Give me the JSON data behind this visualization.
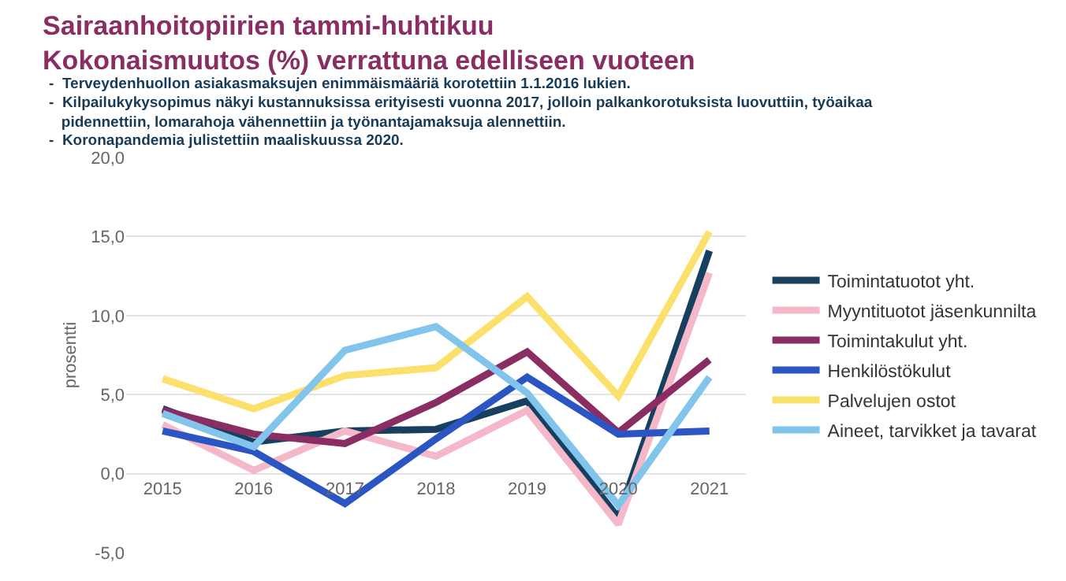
{
  "chart_data": {
    "type": "line",
    "title": "Sairaanhoitopiirien tammi-huhtikuu\nKokonaismuutos (%) verrattuna edelliseen vuoteen",
    "annotations": [
      "-  Terveydenhuollon asiakasmaksujen enimmäismääriä korotettiin 1.1.2016 lukien.",
      "-  Kilpailukykysopimus näkyi kustannuksissa erityisesti vuonna 2017, jolloin palkankorotuksista luovuttiin, työaikaa pidennettiin, lomarahoja vähennettiin ja työnantajamaksuja alennettiin.",
      "-  Koronapandemia julistettiin maaliskuussa 2020."
    ],
    "ylabel": "prosentti",
    "categories": [
      "2015",
      "2016",
      "2017",
      "2018",
      "2019",
      "2020",
      "2021"
    ],
    "series": [
      {
        "name": "Toimintatuotot yht.",
        "color": "#173f5f",
        "values": [
          4.1,
          2.0,
          2.7,
          2.8,
          4.6,
          -2.8,
          14.1
        ]
      },
      {
        "name": "Myyntituotot jäsenkunnilta",
        "color": "#f4b8c8",
        "values": [
          3.1,
          0.2,
          2.7,
          1.1,
          4.0,
          -3.2,
          12.7
        ]
      },
      {
        "name": "Toimintakulut yht.",
        "color": "#8a2d63",
        "values": [
          4.0,
          2.5,
          1.9,
          4.5,
          7.7,
          2.6,
          7.2
        ]
      },
      {
        "name": "Henkilöstökulut",
        "color": "#2b55c2",
        "values": [
          2.7,
          1.4,
          -1.9,
          2.2,
          6.1,
          2.5,
          2.7
        ]
      },
      {
        "name": "Palvelujen ostot",
        "color": "#fbe06b",
        "values": [
          6.0,
          4.1,
          6.2,
          6.7,
          11.2,
          4.9,
          15.3
        ]
      },
      {
        "name": "Aineet, tarvikket ja tavarat",
        "color": "#82c5ec",
        "values": [
          3.8,
          1.7,
          7.8,
          9.3,
          5.1,
          -2.0,
          6.1
        ]
      }
    ],
    "ylim": [
      -5,
      20
    ],
    "yticks": [
      {
        "value": -5,
        "label": "-5,0"
      },
      {
        "value": 0,
        "label": "0,0"
      },
      {
        "value": 5,
        "label": "5,0"
      },
      {
        "value": 10,
        "label": "10,0"
      },
      {
        "value": 15,
        "label": "15,0"
      },
      {
        "value": 20,
        "label": "20,0"
      }
    ],
    "grid": "y",
    "legend": "right",
    "marker": "none",
    "line_style": "solid"
  }
}
